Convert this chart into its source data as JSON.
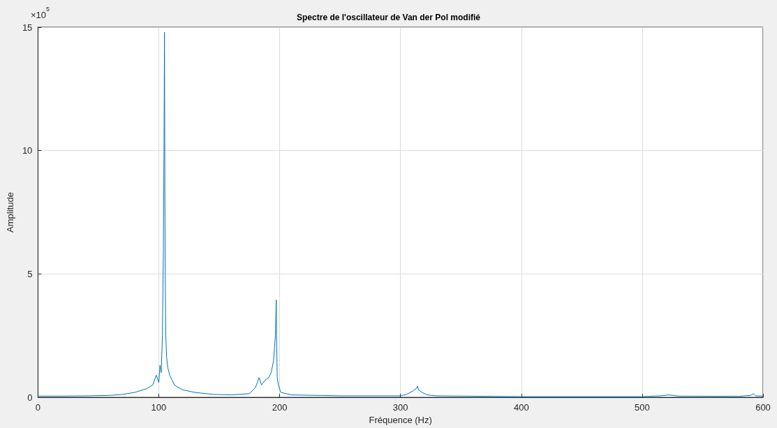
{
  "chart_data": {
    "type": "line",
    "title": "Spectre de l'oscillateur de Van der Pol modifié",
    "xlabel": "Fréquence (Hz)",
    "ylabel": "Amplitude",
    "annotations": [
      "×10$^{5}$"
    ],
    "xlim": [
      0,
      600
    ],
    "xticks": [
      0,
      100,
      200,
      300,
      400,
      500,
      600
    ],
    "ylim": [
      0,
      15
    ],
    "yticks": [
      0,
      5,
      10,
      15
    ],
    "grid": true,
    "marker": "none",
    "line_style": "solid",
    "series": [
      {
        "color": "#0072bd",
        "x": [
          0,
          20,
          40,
          60,
          70,
          80,
          90,
          95,
          98,
          100,
          101,
          102,
          103,
          103.8,
          104.3,
          104.7,
          105,
          105.3,
          105.8,
          106.5,
          107.5,
          109,
          111,
          113,
          116,
          120,
          130,
          145,
          160,
          175,
          180,
          183,
          185,
          188,
          191,
          193,
          195,
          196.5,
          197.2,
          197.6,
          198,
          199,
          201,
          210,
          250,
          300,
          305,
          310,
          313,
          314,
          315,
          318,
          322,
          330,
          400,
          500,
          515,
          522,
          530,
          580,
          590,
          592,
          594,
          600
        ],
        "values": [
          0.05,
          0.05,
          0.06,
          0.08,
          0.12,
          0.2,
          0.35,
          0.5,
          0.9,
          0.6,
          1.3,
          1.0,
          2.5,
          6,
          10,
          14.8,
          9,
          5,
          2.5,
          1.6,
          1.2,
          0.9,
          0.7,
          0.5,
          0.4,
          0.3,
          0.2,
          0.12,
          0.1,
          0.15,
          0.4,
          0.8,
          0.5,
          0.7,
          0.8,
          1.0,
          1.5,
          2.5,
          3.95,
          2.0,
          0.8,
          0.5,
          0.2,
          0.1,
          0.06,
          0.06,
          0.12,
          0.25,
          0.35,
          0.45,
          0.3,
          0.2,
          0.1,
          0.06,
          0.03,
          0.03,
          0.06,
          0.1,
          0.05,
          0.04,
          0.08,
          0.15,
          0.06,
          0.05
        ]
      }
    ]
  }
}
